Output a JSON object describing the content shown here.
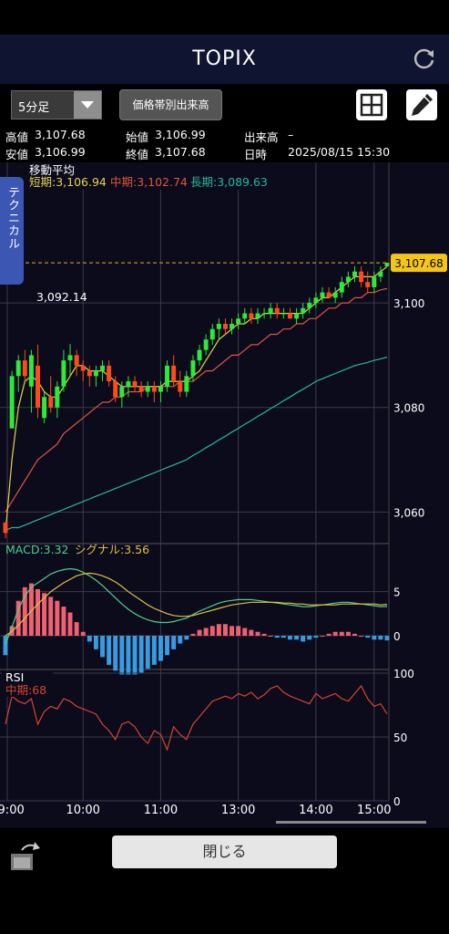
{
  "header": {
    "title": "TOPIX"
  },
  "toolbar": {
    "interval": "5分足",
    "volume_button": "価格帯別出来高"
  },
  "info": {
    "high_label": "高値",
    "high": "3,107.68",
    "low_label": "安値",
    "low": "3,106.99",
    "open_label": "始値",
    "open": "3,106.99",
    "close_label": "終値",
    "close": "3,107.68",
    "volume_label": "出来高",
    "volume": "–",
    "datetime_label": "日時",
    "datetime": "2025/08/15 15:30"
  },
  "side_tab": "テクニカル",
  "footer": {
    "close_button": "閉じる"
  },
  "colors": {
    "up": "#2ee83a",
    "down": "#ff4a1e",
    "short": "#e8d14b",
    "mid": "#e0553a",
    "long": "#25b8a0",
    "macd": "#4fd08a",
    "signal": "#e0c040",
    "rsi": "#d9442b",
    "hist_pos": "#f06070",
    "hist_neg": "#3a9be0"
  },
  "chart_data": [
    {
      "type": "candlestick",
      "title": "移動平均",
      "legend": [
        {
          "name": "短期",
          "value": "3,106.94"
        },
        {
          "name": "中期",
          "value": "3,102.74"
        },
        {
          "name": "長期",
          "value": "3,089.63"
        }
      ],
      "y_ticks": [
        "3,100",
        "3,080",
        "3,060"
      ],
      "ylim": [
        3055,
        3122
      ],
      "x_ticks": [
        "09:00",
        "10:00",
        "11:00",
        "13:00",
        "14:00",
        "15:00"
      ],
      "last_price": "3,107.68",
      "annotation": "3,092.14",
      "candles": [
        [
          3058,
          3058,
          3055,
          3056
        ],
        [
          3076,
          3087,
          3076,
          3086
        ],
        [
          3086,
          3090,
          3083,
          3089
        ],
        [
          3089,
          3091,
          3085,
          3086
        ],
        [
          3084,
          3091,
          3079,
          3090
        ],
        [
          3088,
          3092,
          3078,
          3080
        ],
        [
          3078,
          3083,
          3077,
          3082
        ],
        [
          3082,
          3086,
          3079,
          3080
        ],
        [
          3080,
          3085,
          3078,
          3084
        ],
        [
          3084,
          3091,
          3083,
          3089
        ],
        [
          3089,
          3092.14,
          3086,
          3090
        ],
        [
          3090,
          3091,
          3086,
          3088
        ],
        [
          3088,
          3089,
          3085,
          3087
        ],
        [
          3087,
          3088,
          3084,
          3086
        ],
        [
          3086,
          3088,
          3084,
          3087
        ],
        [
          3087,
          3089,
          3085,
          3088
        ],
        [
          3088,
          3089,
          3084,
          3085
        ],
        [
          3085,
          3086,
          3081,
          3082
        ],
        [
          3082,
          3085,
          3080,
          3084
        ],
        [
          3084,
          3086,
          3082,
          3085
        ],
        [
          3085,
          3086,
          3083,
          3084
        ],
        [
          3084,
          3085,
          3082,
          3083
        ],
        [
          3083,
          3085,
          3082,
          3084
        ],
        [
          3084,
          3085,
          3081,
          3083
        ],
        [
          3083,
          3085,
          3081,
          3084
        ],
        [
          3084,
          3089,
          3083,
          3088
        ],
        [
          3088,
          3090,
          3084,
          3085
        ],
        [
          3085,
          3087,
          3082,
          3083
        ],
        [
          3083,
          3087,
          3082,
          3086
        ],
        [
          3086,
          3090,
          3085,
          3089
        ],
        [
          3089,
          3092,
          3088,
          3091
        ],
        [
          3091,
          3094,
          3090,
          3093
        ],
        [
          3093,
          3096,
          3092,
          3095
        ],
        [
          3095,
          3097,
          3093,
          3096
        ],
        [
          3096,
          3097,
          3094,
          3095
        ],
        [
          3095,
          3097,
          3094,
          3096
        ],
        [
          3096,
          3098,
          3095,
          3097
        ],
        [
          3097,
          3099,
          3096,
          3098
        ],
        [
          3098,
          3099,
          3096,
          3097
        ],
        [
          3097,
          3099,
          3096,
          3098
        ],
        [
          3098,
          3099,
          3097,
          3098
        ],
        [
          3098,
          3100,
          3097,
          3099
        ],
        [
          3099,
          3100,
          3097,
          3098
        ],
        [
          3098,
          3099,
          3097,
          3098
        ],
        [
          3098,
          3099,
          3097,
          3097
        ],
        [
          3097,
          3099,
          3096,
          3098
        ],
        [
          3098,
          3100,
          3097,
          3099
        ],
        [
          3099,
          3101,
          3098,
          3100
        ],
        [
          3100,
          3102,
          3099,
          3101
        ],
        [
          3101,
          3103,
          3100,
          3102
        ],
        [
          3102,
          3103,
          3101,
          3101
        ],
        [
          3101,
          3103,
          3100,
          3102
        ],
        [
          3102,
          3105,
          3101,
          3104
        ],
        [
          3104,
          3106,
          3103,
          3105
        ],
        [
          3105,
          3107,
          3104,
          3106
        ],
        [
          3106,
          3107,
          3103,
          3104
        ],
        [
          3104,
          3106,
          3102,
          3103
        ],
        [
          3103,
          3106,
          3102,
          3105
        ],
        [
          3105,
          3107,
          3104,
          3106
        ],
        [
          3106.99,
          3107.68,
          3106.99,
          3107.68
        ]
      ],
      "ma_short": [
        3056,
        3070,
        3080,
        3085,
        3086,
        3085,
        3083,
        3082,
        3082,
        3084,
        3086,
        3088,
        3088,
        3087,
        3087,
        3087,
        3086,
        3085,
        3084,
        3084,
        3084,
        3084,
        3084,
        3084,
        3084,
        3085,
        3085,
        3085,
        3085,
        3086,
        3087,
        3089,
        3091,
        3093,
        3094,
        3095,
        3096,
        3096,
        3097,
        3097,
        3098,
        3098,
        3098,
        3098,
        3098,
        3098,
        3098,
        3099,
        3100,
        3101,
        3101,
        3102,
        3103,
        3104,
        3105,
        3105,
        3105,
        3105,
        3106,
        3106.94
      ],
      "ma_mid": [
        3060,
        3062,
        3064,
        3066,
        3068,
        3070,
        3071,
        3072,
        3073,
        3075,
        3076,
        3077,
        3078,
        3079,
        3080,
        3081,
        3081,
        3082,
        3082,
        3083,
        3083,
        3083,
        3084,
        3084,
        3084,
        3084,
        3084,
        3085,
        3085,
        3085,
        3086,
        3087,
        3087,
        3088,
        3089,
        3090,
        3090,
        3091,
        3092,
        3092,
        3093,
        3094,
        3094,
        3095,
        3095,
        3096,
        3096,
        3097,
        3097,
        3098,
        3099,
        3099,
        3100,
        3100,
        3101,
        3101,
        3102,
        3102,
        3102.5,
        3102.74
      ],
      "ma_long": [
        3056.5,
        3057,
        3057,
        3057.5,
        3058,
        3058.5,
        3059,
        3059.5,
        3060,
        3060.5,
        3061,
        3061.5,
        3062,
        3062.5,
        3063,
        3063.5,
        3064,
        3064.5,
        3065,
        3065.5,
        3066,
        3066.5,
        3067,
        3067.5,
        3068,
        3068.5,
        3069,
        3069.5,
        3070,
        3070.8,
        3071.5,
        3072.3,
        3073,
        3073.8,
        3074.5,
        3075.3,
        3076,
        3076.8,
        3077.5,
        3078.3,
        3079,
        3079.8,
        3080.5,
        3081.3,
        3082,
        3082.8,
        3083.5,
        3084.2,
        3085,
        3085.5,
        3086,
        3086.5,
        3087,
        3087.5,
        3088,
        3088.3,
        3088.6,
        3089,
        3089.3,
        3089.63
      ]
    },
    {
      "type": "line",
      "title": "MACD",
      "legend": [
        {
          "name": "MACD",
          "value": "3.32"
        },
        {
          "name": "シグナル",
          "value": "3.56"
        }
      ],
      "y_ticks": [
        "5",
        "0"
      ],
      "ylim": [
        -3,
        9
      ],
      "macd": [
        -1,
        1,
        3,
        4.5,
        5.5,
        6,
        6.5,
        7,
        7.3,
        7.5,
        7.6,
        7.5,
        7.2,
        6.8,
        6.3,
        5.7,
        5,
        4.3,
        3.6,
        3,
        2.5,
        2.1,
        1.8,
        1.6,
        1.5,
        1.5,
        1.6,
        1.8,
        2,
        2.4,
        2.8,
        3.1,
        3.4,
        3.7,
        3.9,
        4,
        4.1,
        4.1,
        4.1,
        4,
        3.9,
        3.8,
        3.7,
        3.6,
        3.5,
        3.4,
        3.3,
        3.3,
        3.4,
        3.5,
        3.6,
        3.7,
        3.8,
        3.8,
        3.7,
        3.6,
        3.5,
        3.4,
        3.3,
        3.32
      ],
      "signal": [
        0,
        0.5,
        1.2,
        2,
        2.8,
        3.6,
        4.3,
        5,
        5.5,
        6,
        6.4,
        6.8,
        7,
        7.1,
        7,
        6.8,
        6.5,
        6.1,
        5.6,
        5,
        4.5,
        4,
        3.5,
        3.1,
        2.8,
        2.5,
        2.3,
        2.2,
        2.2,
        2.3,
        2.5,
        2.7,
        2.9,
        3.1,
        3.3,
        3.5,
        3.6,
        3.7,
        3.8,
        3.8,
        3.8,
        3.8,
        3.8,
        3.7,
        3.7,
        3.6,
        3.6,
        3.5,
        3.5,
        3.5,
        3.5,
        3.5,
        3.6,
        3.6,
        3.6,
        3.6,
        3.6,
        3.6,
        3.5,
        3.56
      ]
    },
    {
      "type": "line",
      "title": "RSI",
      "legend": [
        {
          "name": "中期",
          "value": "68"
        }
      ],
      "y_ticks": [
        "100",
        "50",
        "0"
      ],
      "ylim": [
        0,
        100
      ],
      "rsi": [
        60,
        82,
        78,
        76,
        80,
        60,
        70,
        74,
        72,
        80,
        78,
        74,
        72,
        70,
        68,
        60,
        55,
        48,
        60,
        62,
        58,
        50,
        45,
        55,
        52,
        40,
        58,
        52,
        48,
        60,
        66,
        72,
        78,
        80,
        82,
        80,
        84,
        82,
        85,
        80,
        83,
        88,
        90,
        85,
        82,
        80,
        78,
        76,
        84,
        80,
        82,
        84,
        80,
        78,
        84,
        90,
        80,
        74,
        76,
        68
      ]
    }
  ]
}
